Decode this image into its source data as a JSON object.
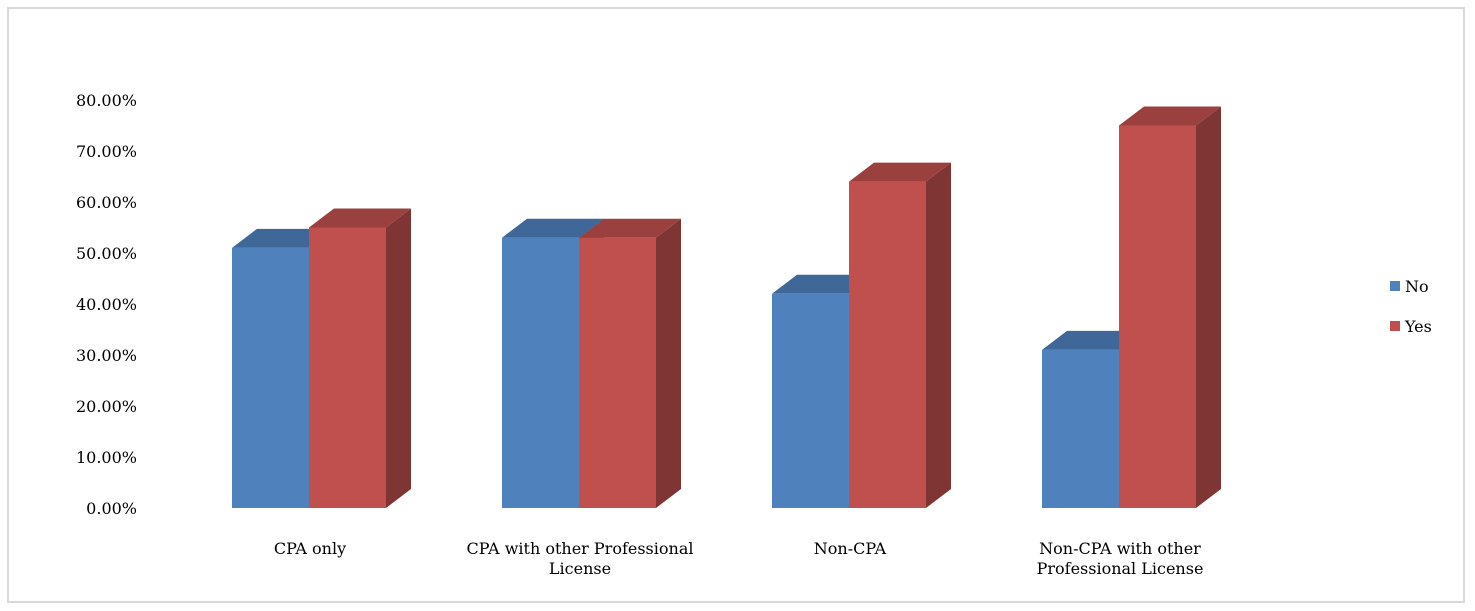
{
  "chart_data": {
    "type": "bar",
    "style": "3d-clustered-column",
    "categories": [
      [
        "CPA only"
      ],
      [
        "CPA with other Professional",
        "License"
      ],
      [
        "Non-CPA"
      ],
      [
        "Non-CPA with other",
        "Professional License"
      ]
    ],
    "series": [
      {
        "name": "No",
        "color": "#4f81bd",
        "values": [
          0.51,
          0.53,
          0.42,
          0.31
        ]
      },
      {
        "name": "Yes",
        "color": "#c0504d",
        "values": [
          0.55,
          0.53,
          0.64,
          0.75
        ]
      }
    ],
    "ylim": [
      0,
      0.8
    ],
    "yticks": [
      "0.00%",
      "10.00%",
      "20.00%",
      "30.00%",
      "40.00%",
      "50.00%",
      "60.00%",
      "70.00%",
      "80.00%"
    ],
    "grid": false,
    "legend_position": "right"
  }
}
